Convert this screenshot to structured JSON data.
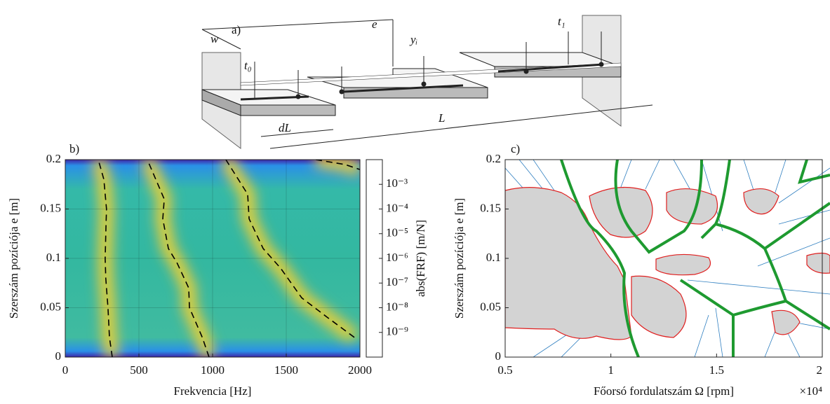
{
  "diagram": {
    "label": "a)",
    "w": "w",
    "e": "e",
    "yi": "yᵢ",
    "t1": "t₁",
    "t0": "t₀",
    "dL": "dL",
    "L": "L"
  },
  "chart_data": [
    {
      "type": "heatmap",
      "panel": "b)",
      "xlabel": "Frekvencia [Hz]",
      "ylabel": "Szerszám pozíciója  e [m]",
      "xlim": [
        0,
        2000
      ],
      "ylim": [
        0,
        0.2
      ],
      "xticks": [
        0,
        500,
        1000,
        1500,
        2000
      ],
      "yticks": [
        0,
        0.05,
        0.1,
        0.15,
        0.2
      ],
      "grid": true,
      "colormap": [
        "#3e26a8",
        "#2e7ff0",
        "#13b1d5",
        "#33b8a0",
        "#91be48",
        "#f3bb38",
        "#f9fb15"
      ],
      "colorbar": {
        "label": "abs(FRF) [m/N]",
        "log": true,
        "clim": [
          1e-10,
          0.01
        ],
        "ticks": [
          {
            "value": 0.001,
            "label": "10⁻³"
          },
          {
            "value": 0.0001,
            "label": "10⁻⁴"
          },
          {
            "value": 1e-05,
            "label": "10⁻⁵"
          },
          {
            "value": 1e-06,
            "label": "10⁻⁶"
          },
          {
            "value": 1e-07,
            "label": "10⁻⁷"
          },
          {
            "value": 1e-08,
            "label": "10⁻⁸"
          },
          {
            "value": 1e-09,
            "label": "10⁻⁹"
          }
        ]
      },
      "series": [
        {
          "color": "#000000",
          "x": [
            319,
            300,
            290,
            275,
            271,
            276,
            280,
            262,
            224
          ],
          "values": [
            0,
            0.02,
            0.05,
            0.08,
            0.1,
            0.13,
            0.15,
            0.18,
            0.2
          ]
        },
        {
          "color": "#000000",
          "x": [
            976,
            930,
            843,
            838,
            760,
            700,
            662,
            672,
            557
          ],
          "values": [
            0,
            0.02,
            0.05,
            0.07,
            0.095,
            0.11,
            0.14,
            0.16,
            0.2
          ]
        },
        {
          "color": "#000000",
          "x": [
            1962,
            1781,
            1605,
            1462,
            1343,
            1248,
            1238,
            1090
          ],
          "values": [
            0.02,
            0.04,
            0.06,
            0.09,
            0.11,
            0.14,
            0.165,
            0.2
          ]
        },
        {
          "color": "#000000",
          "x": [
            1700,
            1900,
            2000
          ],
          "values": [
            0.2,
            0.195,
            0.19
          ]
        }
      ]
    },
    {
      "type": "stability",
      "panel": "c)",
      "xlabel": "Főorsó fordulatszám  Ω [rpm]",
      "ylabel": "Szerszám pozíciója  e [m]",
      "multiplier": "×10⁴",
      "xlim": [
        5000,
        20000
      ],
      "ylim": [
        0,
        0.2
      ],
      "xticks": [
        {
          "value": 5000,
          "label": "0.5"
        },
        {
          "value": 10000,
          "label": "1"
        },
        {
          "value": 15000,
          "label": "1.5"
        },
        {
          "value": 20000,
          "label": "2"
        }
      ],
      "yticks": [
        0,
        0.05,
        0.1,
        0.15,
        0.2
      ]
    }
  ]
}
